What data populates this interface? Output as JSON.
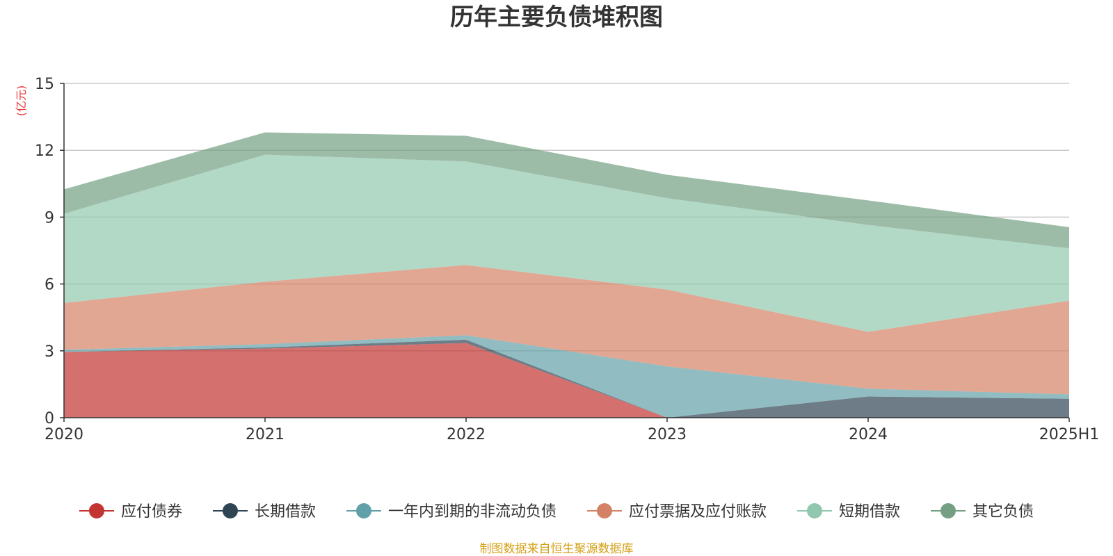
{
  "chart_data": {
    "type": "area",
    "stacked": true,
    "title": "历年主要负债堆积图",
    "unit_label": "(亿元)",
    "source": "制图数据来自恒生聚源数据库",
    "categories": [
      "2020",
      "2021",
      "2022",
      "2023",
      "2024",
      "2025H1"
    ],
    "y_ticks": [
      0,
      3,
      6,
      9,
      12,
      15
    ],
    "ylim": [
      0,
      15
    ],
    "grid": true,
    "legend_position": "bottom",
    "series": [
      {
        "name": "应付债券",
        "color": "#c23531",
        "values": [
          2.95,
          3.1,
          3.35,
          0,
          0,
          0
        ]
      },
      {
        "name": "长期借款",
        "color": "#2f4554",
        "values": [
          0,
          0.05,
          0.15,
          0,
          0.95,
          0.85
        ]
      },
      {
        "name": "一年内到期的非流动负债",
        "color": "#61a0a8",
        "values": [
          0.1,
          0.15,
          0.2,
          2.3,
          0.35,
          0.2
        ]
      },
      {
        "name": "应付票据及应付账款",
        "color": "#d48265",
        "values": [
          2.1,
          2.8,
          3.15,
          3.45,
          2.55,
          4.2
        ]
      },
      {
        "name": "短期借款",
        "color": "#91c7ae",
        "values": [
          4.0,
          5.7,
          4.65,
          4.1,
          4.8,
          2.35
        ]
      },
      {
        "name": "其它负债",
        "color": "#749f83",
        "values": [
          1.1,
          1.0,
          1.15,
          1.05,
          1.1,
          0.95
        ]
      }
    ]
  }
}
